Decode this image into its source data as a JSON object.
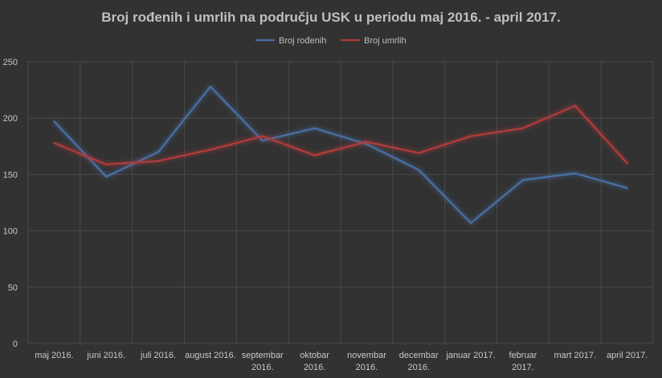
{
  "chart_data": {
    "type": "line",
    "title": "Broj rođenih i umrlih na području USK u periodu maj 2016. - april 2017.",
    "xlabel": "",
    "ylabel": "",
    "ylim": [
      0,
      250
    ],
    "yticks": [
      0,
      50,
      100,
      150,
      200,
      250
    ],
    "grid": true,
    "legend_position": "top",
    "categories": [
      [
        "maj 2016."
      ],
      [
        "juni 2016."
      ],
      [
        "juli 2016."
      ],
      [
        "august 2016."
      ],
      [
        "septembar",
        "2016."
      ],
      [
        "oktobar",
        "2016."
      ],
      [
        "novembar",
        "2016."
      ],
      [
        "decembar",
        "2016."
      ],
      [
        "januar 2017."
      ],
      [
        "februar",
        "2017."
      ],
      [
        "mart 2017."
      ],
      [
        "april 2017."
      ]
    ],
    "series": [
      {
        "name": "Broj rođenih",
        "color": "#4a6fa5",
        "values": [
          197,
          148,
          170,
          228,
          180,
          191,
          177,
          154,
          107,
          145,
          151,
          138
        ]
      },
      {
        "name": "Broj umrlih",
        "color": "#b23b3b",
        "values": [
          178,
          159,
          162,
          172,
          184,
          167,
          179,
          169,
          184,
          191,
          211,
          160
        ]
      }
    ]
  }
}
